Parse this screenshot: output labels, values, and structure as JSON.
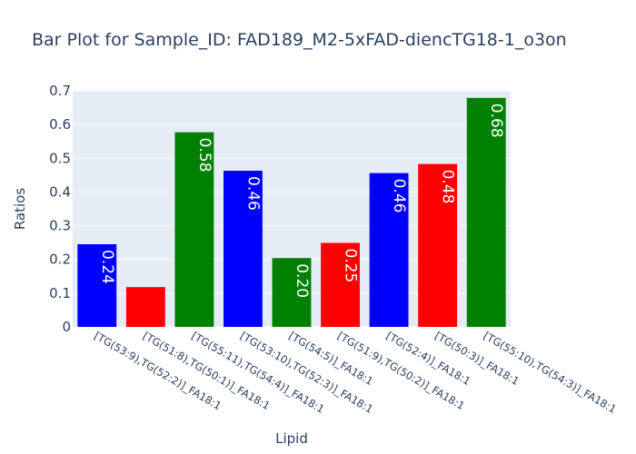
{
  "chart_data": {
    "type": "bar",
    "title": "Bar Plot for Sample_ID: FAD189_M2-5xFAD-diencTG18-1_o3on",
    "xlabel": "Lipid",
    "ylabel": "Ratios",
    "ylim": [
      0,
      0.7
    ],
    "yticks": [
      "0",
      "0.1",
      "0.2",
      "0.3",
      "0.4",
      "0.5",
      "0.6",
      "0.7"
    ],
    "grid": true,
    "categories": [
      "[TG(53:9),TG(52:2)]_FA18:1",
      "[TG(51:8),TG(50:1)]_FA18:1",
      "[TG(55:11),TG(54:4)]_FA18:1",
      "[TG(53:10),TG(52:3)]_FA18:1",
      "[TG(54:5)]_FA18:1",
      "[TG(51:9),TG(50:2)]_FA18:1",
      "[TG(52:4)]_FA18:1",
      "[TG(50:3)]_FA18:1",
      "[TG(55:10),TG(54:3)]_FA18:1"
    ],
    "values": [
      0.245,
      0.118,
      0.577,
      0.463,
      0.204,
      0.249,
      0.456,
      0.483,
      0.679
    ],
    "labels": [
      "0.24",
      "",
      "0.58",
      "0.46",
      "0.20",
      "0.25",
      "0.46",
      "0.48",
      "0.68"
    ],
    "colors": [
      "#0000ff",
      "#ff0000",
      "#008000",
      "#0000ff",
      "#008000",
      "#ff0000",
      "#0000ff",
      "#ff0000",
      "#008000"
    ],
    "plot_background": "#e5ecf6"
  }
}
